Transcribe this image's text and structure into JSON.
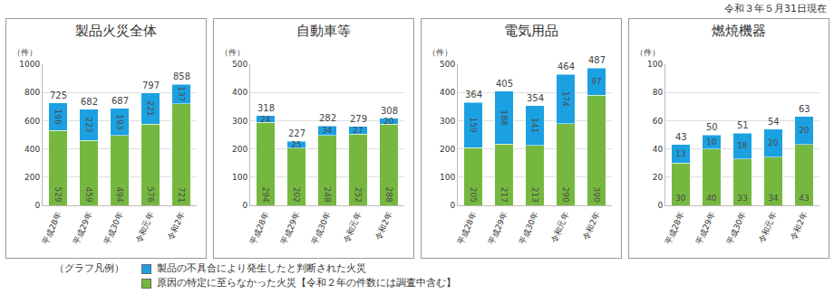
{
  "note": "令和３年５月31日現在",
  "legend_title": "（グラフ凡例）",
  "chart_data": [
    {
      "type": "bar",
      "title": "製品火災全体",
      "ylabel": "（件）",
      "categories": [
        "平成28年",
        "平成29年",
        "平成30年",
        "令和元年",
        "令和2年"
      ],
      "series": [
        {
          "name": "原因の特定に至らなかった火災【令和２年の件数には調査中含む】",
          "color": "#76b83f",
          "values": [
            529,
            459,
            494,
            576,
            721
          ]
        },
        {
          "name": "製品の不具合により発生したと判断された火災",
          "color": "#1ba1e2",
          "values": [
            196,
            223,
            193,
            221,
            137
          ]
        }
      ],
      "totals": [
        725,
        682,
        687,
        797,
        858
      ],
      "ylim": [
        0,
        1000
      ],
      "yticks": [
        0,
        200,
        400,
        600,
        800,
        1000
      ],
      "stacked": true,
      "data_labels": true,
      "grid": true
    },
    {
      "type": "bar",
      "title": "自動車等",
      "ylabel": "（件）",
      "categories": [
        "平成28年",
        "平成29年",
        "平成30年",
        "令和元年",
        "令和2年"
      ],
      "series": [
        {
          "name": "原因の特定に至らなかった火災【令和２年の件数には調査中含む】",
          "color": "#76b83f",
          "values": [
            294,
            202,
            248,
            252,
            288
          ]
        },
        {
          "name": "製品の不具合により発生したと判断された火災",
          "color": "#1ba1e2",
          "values": [
            24,
            25,
            34,
            27,
            20
          ]
        }
      ],
      "totals": [
        318,
        227,
        282,
        279,
        308
      ],
      "ylim": [
        0,
        500
      ],
      "yticks": [
        0,
        100,
        200,
        300,
        400,
        500
      ],
      "stacked": true,
      "data_labels": true,
      "grid": true
    },
    {
      "type": "bar",
      "title": "電気用品",
      "ylabel": "（件）",
      "categories": [
        "平成28年",
        "平成29年",
        "平成30年",
        "令和元年",
        "令和2年"
      ],
      "series": [
        {
          "name": "原因の特定に至らなかった火災【令和２年の件数には調査中含む】",
          "color": "#76b83f",
          "values": [
            205,
            217,
            213,
            290,
            390
          ]
        },
        {
          "name": "製品の不具合により発生したと判断された火災",
          "color": "#1ba1e2",
          "values": [
            159,
            188,
            141,
            174,
            97
          ]
        }
      ],
      "totals": [
        364,
        405,
        354,
        464,
        487
      ],
      "ylim": [
        0,
        500
      ],
      "yticks": [
        0,
        100,
        200,
        300,
        400,
        500
      ],
      "stacked": true,
      "data_labels": true,
      "grid": true
    },
    {
      "type": "bar",
      "title": "燃焼機器",
      "ylabel": "（件）",
      "categories": [
        "平成28年",
        "平成29年",
        "平成30年",
        "令和元年",
        "令和2年"
      ],
      "series": [
        {
          "name": "原因の特定に至らなかった火災【令和２年の件数には調査中含む】",
          "color": "#76b83f",
          "values": [
            30,
            40,
            33,
            34,
            43
          ]
        },
        {
          "name": "製品の不具合により発生したと判断された火災",
          "color": "#1ba1e2",
          "values": [
            13,
            10,
            18,
            20,
            20
          ]
        }
      ],
      "totals": [
        43,
        50,
        51,
        54,
        63
      ],
      "ylim": [
        0,
        100
      ],
      "yticks": [
        0,
        20,
        40,
        60,
        80,
        100
      ],
      "stacked": true,
      "data_labels": true,
      "grid": true
    }
  ]
}
